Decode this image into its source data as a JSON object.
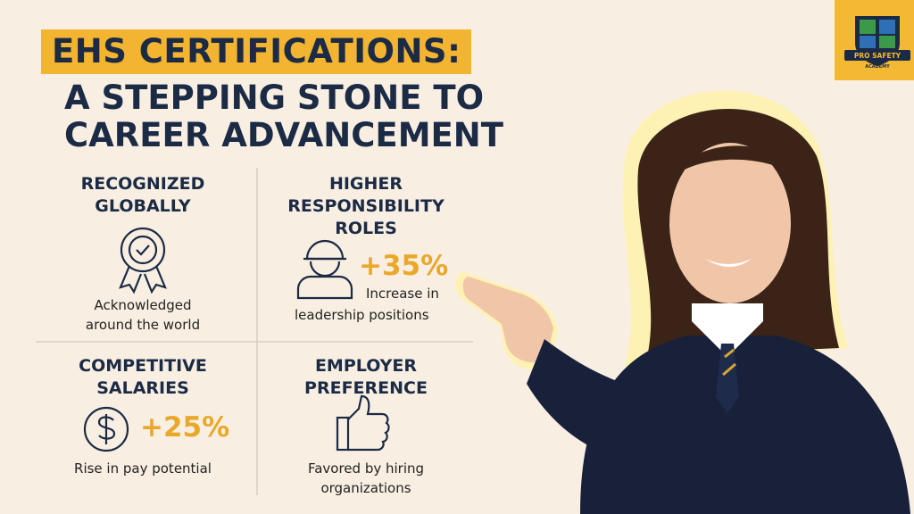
{
  "header": {
    "title_highlight": "EHS CERTIFICATIONS:",
    "title_line_2": "A STEPPING STONE TO",
    "title_line_3": "CAREER ADVANCEMENT"
  },
  "cards": [
    {
      "title": "RECOGNIZED GLOBALLY",
      "description": "Acknowledged around the world"
    },
    {
      "title": "HIGHER RESPONSIBILITY ROLES",
      "stat": "+35%",
      "description_1": "Increase in",
      "description_2": "leadership positions"
    },
    {
      "title": "COMPETITIVE SALARIES",
      "stat": "+25%",
      "description": "Rise in pay potential"
    },
    {
      "title": "EMPLOYER PREFERENCE",
      "description": "Favored by hiring organizations"
    }
  ],
  "logo": {
    "name": "PRO SAFETY",
    "subtitle": "ACADEMY"
  }
}
